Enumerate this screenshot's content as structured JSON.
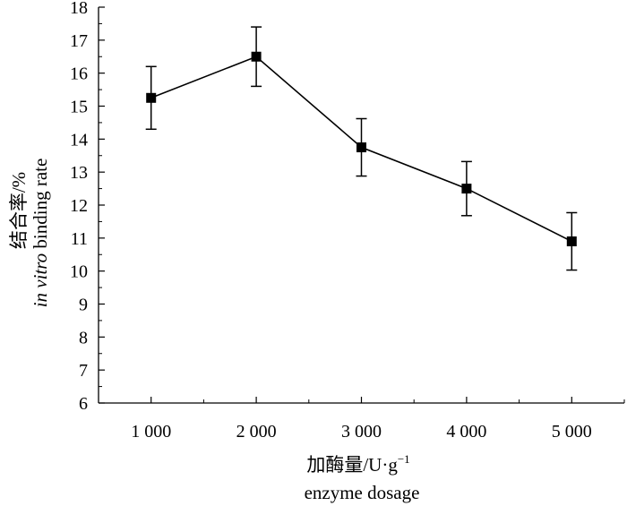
{
  "chart_data": {
    "type": "line",
    "x": [
      1000,
      2000,
      3000,
      4000,
      5000
    ],
    "x_tick_labels": [
      "1 000",
      "2 000",
      "3 000",
      "4 000",
      "5 000"
    ],
    "series": [
      {
        "values": [
          15.25,
          16.5,
          13.75,
          12.5,
          10.9
        ],
        "error": [
          0.95,
          0.9,
          0.87,
          0.82,
          0.87
        ]
      }
    ],
    "xlabel_cn": "加酶量/U·g",
    "xlabel_sup": "−1",
    "xlabel_en": "enzyme dosage",
    "ylabel_cn": "结合率/%",
    "ylabel_en_italic": "in vitro",
    "ylabel_en": " binding rate",
    "xlim": [
      500,
      5500
    ],
    "ylim": [
      6,
      18
    ],
    "y_ticks": [
      6,
      7,
      8,
      9,
      10,
      11,
      12,
      13,
      14,
      15,
      16,
      17,
      18
    ],
    "grid": false,
    "marker": "square",
    "color": "#000000"
  }
}
